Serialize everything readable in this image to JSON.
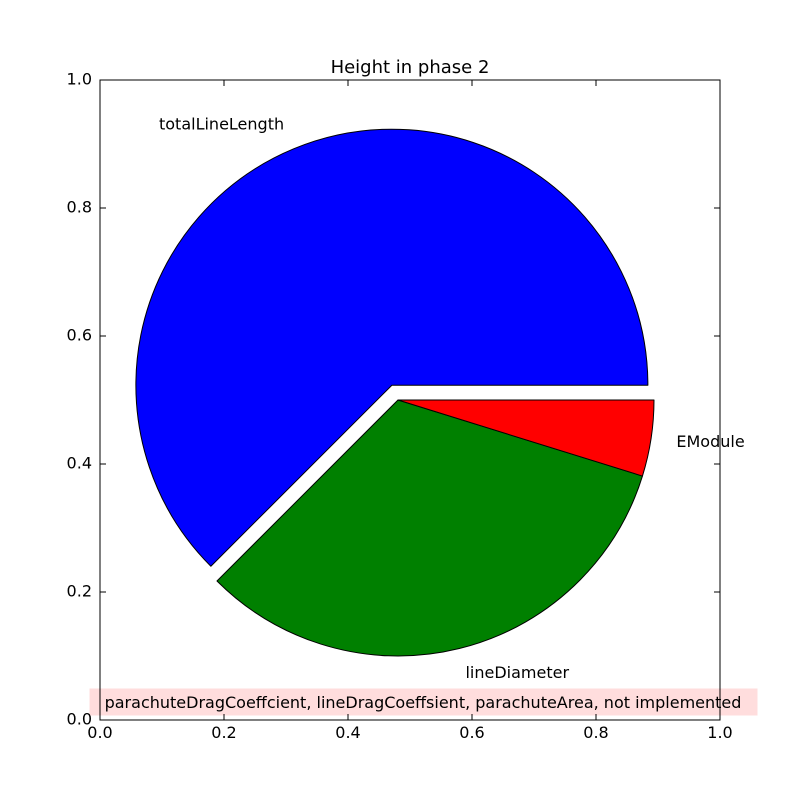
{
  "chart_data": {
    "type": "pie",
    "title": "Height in phase 2",
    "slices": [
      {
        "label": "totalLineLength",
        "value": 0.625,
        "color": "#0000ff",
        "exploded": true
      },
      {
        "label": "lineDiameter",
        "value": 0.327,
        "color": "#008000",
        "exploded": false
      },
      {
        "label": "EModule",
        "value": 0.048,
        "color": "#ff0000",
        "exploded": false
      }
    ],
    "start_angle_deg": 0,
    "direction": "counterclockwise",
    "xlim": [
      0.0,
      1.0
    ],
    "ylim": [
      0.0,
      1.0
    ],
    "xticks": [
      "0.0",
      "0.2",
      "0.4",
      "0.6",
      "0.8",
      "1.0"
    ],
    "yticks": [
      "0.0",
      "0.2",
      "0.4",
      "0.6",
      "0.8",
      "1.0"
    ],
    "grid": false,
    "annotation": {
      "text": "parachuteDragCoeffcient, lineDragCoeffsient, parachuteArea, not implemented",
      "background": "#ffdddd"
    }
  }
}
